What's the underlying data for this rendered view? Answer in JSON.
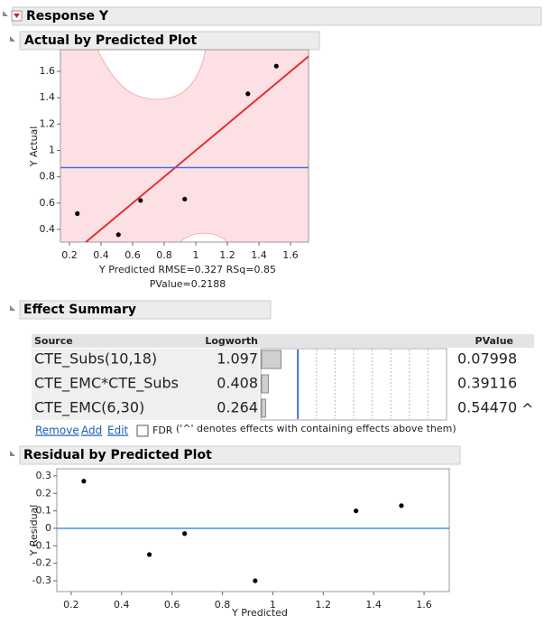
{
  "header": {
    "title": "Response Y"
  },
  "sections": [
    "Actual by Predicted Plot",
    "Effect Summary",
    "Residual by Predicted Plot"
  ],
  "chart_data": [
    {
      "type": "scatter",
      "title_lines": [
        "Y Predicted RMSE=0.327 RSq=0.85",
        "PValue=0.2188"
      ],
      "y_label": "Y Actual",
      "x": [
        0.25,
        0.51,
        0.65,
        0.93,
        1.33,
        1.51
      ],
      "values": [
        0.52,
        0.36,
        0.62,
        0.63,
        1.43,
        1.64
      ],
      "color": "#000000",
      "xlim": [
        0.143,
        1.714
      ],
      "ylim": [
        0.304,
        1.765
      ],
      "xticks": [
        0.2,
        0.4,
        0.6,
        0.8,
        1,
        1.2,
        1.4,
        1.6
      ],
      "yticks": [
        0.4,
        0.6,
        0.8,
        1,
        1.2,
        1.4,
        1.6
      ],
      "mean_line": 0.87,
      "mean_color": "#4a6fe3",
      "diagonal_color": "#e0303a"
    },
    {
      "type": "scatter",
      "x_label": "Y Predicted",
      "y_label": "Y Residual",
      "x": [
        0.25,
        0.51,
        0.65,
        0.93,
        1.33,
        1.51
      ],
      "values": [
        0.27,
        -0.15,
        -0.03,
        -0.3,
        0.1,
        0.13
      ],
      "color": "#000000",
      "xlim": [
        0.143,
        1.7
      ],
      "ylim": [
        -0.362,
        0.341
      ],
      "xticks": [
        0.2,
        0.4,
        0.6,
        0.8,
        1,
        1.2,
        1.4,
        1.6
      ],
      "yticks": [
        -0.3,
        -0.2,
        -0.1,
        0,
        0.1,
        0.2,
        0.3
      ],
      "zero_line": 0,
      "zero_color": "#4a8fe3"
    }
  ],
  "effect_summary": {
    "columns": [
      "Source",
      "Logworth",
      "PValue"
    ],
    "rows": [
      {
        "source": "CTE_Subs(10,18)",
        "logworth": 1.097,
        "pvalue": "0.07998"
      },
      {
        "source": "CTE_EMC*CTE_Subs",
        "logworth": 0.408,
        "pvalue": "0.39116"
      },
      {
        "source": "CTE_EMC(6,30)",
        "logworth": 0.264,
        "pvalue": "0.54470",
        "marker": "^"
      }
    ],
    "bar_xlim": [
      0,
      10
    ],
    "reference_logworth": 2,
    "guide_lines": [
      3,
      4,
      5,
      6,
      7,
      8,
      9
    ],
    "links": [
      "Remove",
      "Add",
      "Edit"
    ],
    "checkbox": "FDR",
    "note": "('^' denotes effects with containing effects above them)"
  }
}
